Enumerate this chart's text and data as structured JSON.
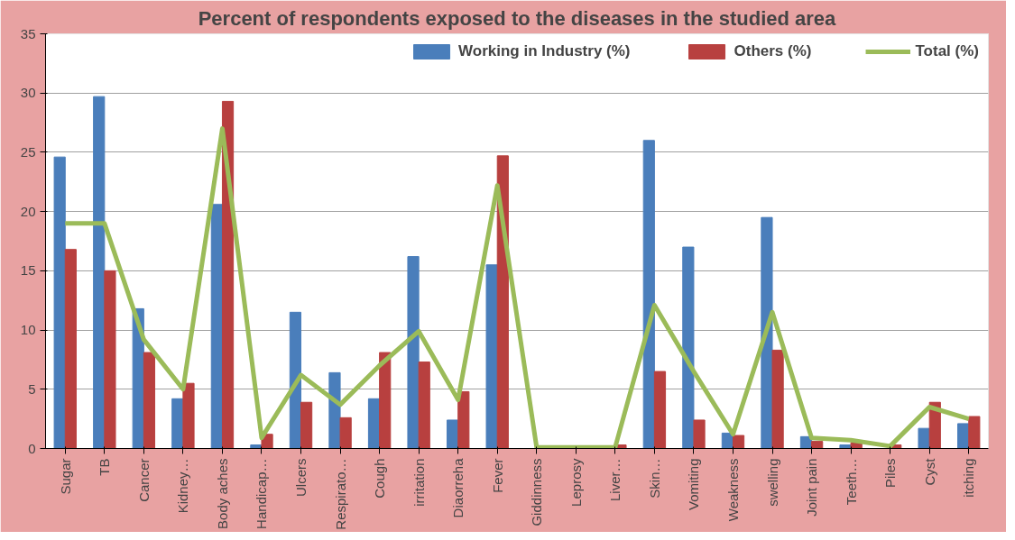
{
  "chart_data": {
    "type": "bar",
    "title": "Percent of respondents exposed to the diseases in the studied area",
    "categories": [
      "Sugar",
      "TB",
      "Cancer",
      "Kidney…",
      "Body aches",
      "Handicap…",
      "Ulcers",
      "Respirato…",
      "Cough",
      "irritation",
      "Diaorreha",
      "Fever",
      "Giddinness",
      "Leprosy",
      "Liver…",
      "Skin…",
      "Vomiting",
      "Weakness",
      "swelling",
      "Joint pain",
      "Teeth…",
      "Piles",
      "Cyst",
      "itching"
    ],
    "series": [
      {
        "name": "Working in Industry (%)",
        "color": "#4a7ebb",
        "values": [
          24.6,
          29.7,
          11.8,
          4.2,
          20.6,
          0.3,
          11.5,
          6.4,
          4.2,
          16.2,
          2.4,
          15.5,
          0,
          0,
          0,
          26.0,
          17.0,
          1.3,
          19.5,
          1.0,
          0.3,
          null,
          1.7,
          2.1
        ]
      },
      {
        "name": "Others (%)",
        "color": "#b8403f",
        "values": [
          16.8,
          15.0,
          8.1,
          5.5,
          29.3,
          1.2,
          3.9,
          2.6,
          8.1,
          7.3,
          4.8,
          24.7,
          0,
          0,
          0.3,
          6.5,
          2.4,
          1.1,
          8.3,
          0.6,
          0.5,
          0.3,
          3.9,
          2.7
        ]
      },
      {
        "name": "Total (%)",
        "type": "line",
        "color": "#9bbb59",
        "values": [
          19.0,
          19.0,
          9.2,
          5.0,
          27.0,
          0.9,
          6.2,
          3.7,
          7.0,
          9.9,
          4.1,
          22.2,
          0.1,
          0.1,
          0.1,
          12.1,
          6.5,
          1.2,
          11.5,
          0.9,
          0.7,
          0.2,
          3.5,
          2.5
        ]
      }
    ],
    "ylim": [
      0,
      35
    ],
    "yticks": [
      0,
      5,
      10,
      15,
      20,
      25,
      30,
      35
    ],
    "grid": "y",
    "legend": "top right"
  }
}
